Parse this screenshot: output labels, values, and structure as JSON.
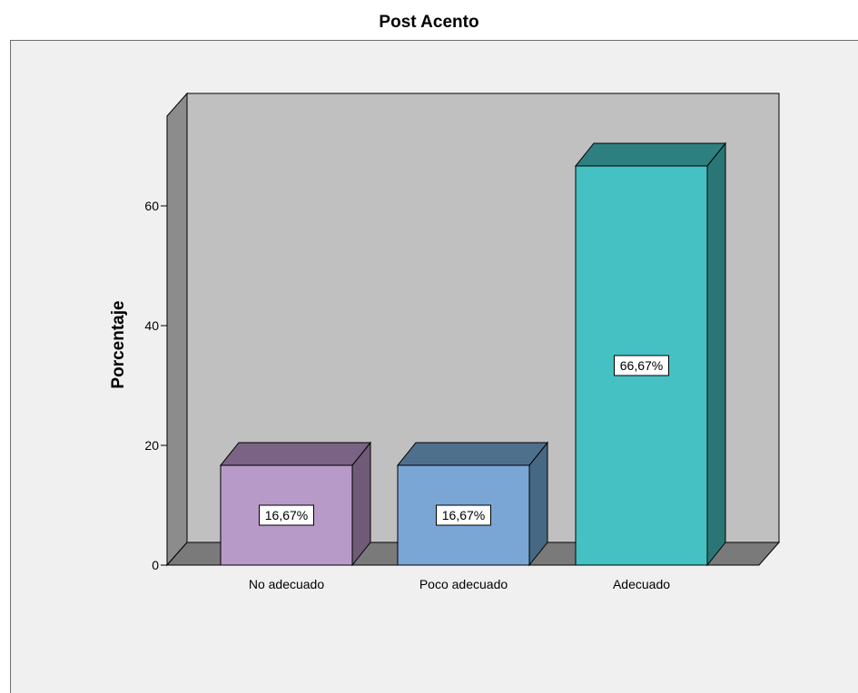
{
  "chart_data": {
    "type": "bar",
    "title": "Post Acento",
    "xlabel": "",
    "ylabel": "Porcentaje",
    "categories": [
      "No adecuado",
      "Poco adecuado",
      "Adecuado"
    ],
    "values": [
      16.67,
      16.67,
      66.67
    ],
    "data_labels": [
      "16,67%",
      "16,67%",
      "66,67%"
    ],
    "yticks": [
      0,
      20,
      40,
      60
    ],
    "ylim": [
      0,
      75
    ],
    "grid": false,
    "three_d": true,
    "colors": {
      "bars": [
        {
          "front": "#b89ac9",
          "side": "#6f5a78",
          "top": "#7a6385"
        },
        {
          "front": "#7aa6d6",
          "side": "#466882",
          "top": "#4e708d"
        },
        {
          "front": "#45c1c4",
          "side": "#2a7676",
          "top": "#2e7f80"
        }
      ],
      "back_wall": "#c0c0c0",
      "left_wall": "#8c8c8c",
      "floor": "#7a7a7a",
      "frame_background": "#f0f0f0"
    }
  }
}
